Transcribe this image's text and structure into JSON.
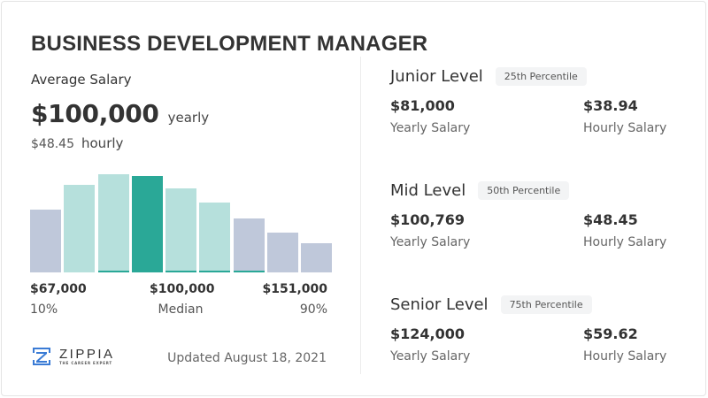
{
  "title": "BUSINESS DEVELOPMENT MANAGER",
  "average": {
    "label": "Average Salary",
    "yearly_value": "$100,000",
    "yearly_unit": "yearly",
    "hourly_value": "$48.45",
    "hourly_unit": "hourly"
  },
  "chart_data": {
    "type": "bar",
    "title": "Salary distribution",
    "categories": [
      "1",
      "2",
      "3",
      "4",
      "5",
      "6",
      "7",
      "8",
      "9"
    ],
    "values": [
      71,
      99,
      111,
      109,
      95,
      79,
      61,
      45,
      33
    ],
    "highlight_index": 3,
    "colors": {
      "median": "#2aa897",
      "middle": "#b6e0dc",
      "tails": "#bfc8da",
      "accent": "#2aa897"
    },
    "bar_styles": [
      "tails",
      "middle",
      "middle",
      "median",
      "middle",
      "middle",
      "tails",
      "tails",
      "tails"
    ],
    "accent_bars": [
      2,
      4,
      5,
      6
    ],
    "x_labels": [
      {
        "value": "$67,000",
        "label": "10%"
      },
      {
        "value": "$100,000",
        "label": "Median"
      },
      {
        "value": "$151,000",
        "label": "90%"
      }
    ],
    "xlabel": "",
    "ylabel": "",
    "grid": false
  },
  "footer": {
    "brand": "ZIPPIA",
    "tagline": "THE CAREER EXPERT",
    "updated": "Updated August 18, 2021"
  },
  "levels": [
    {
      "name": "Junior Level",
      "percentile": "25th Percentile",
      "yearly": "$81,000",
      "yearly_label": "Yearly Salary",
      "hourly": "$38.94",
      "hourly_label": "Hourly Salary"
    },
    {
      "name": "Mid Level",
      "percentile": "50th Percentile",
      "yearly": "$100,769",
      "yearly_label": "Yearly Salary",
      "hourly": "$48.45",
      "hourly_label": "Hourly Salary"
    },
    {
      "name": "Senior Level",
      "percentile": "75th Percentile",
      "yearly": "$124,000",
      "yearly_label": "Yearly Salary",
      "hourly": "$59.62",
      "hourly_label": "Hourly Salary"
    }
  ]
}
